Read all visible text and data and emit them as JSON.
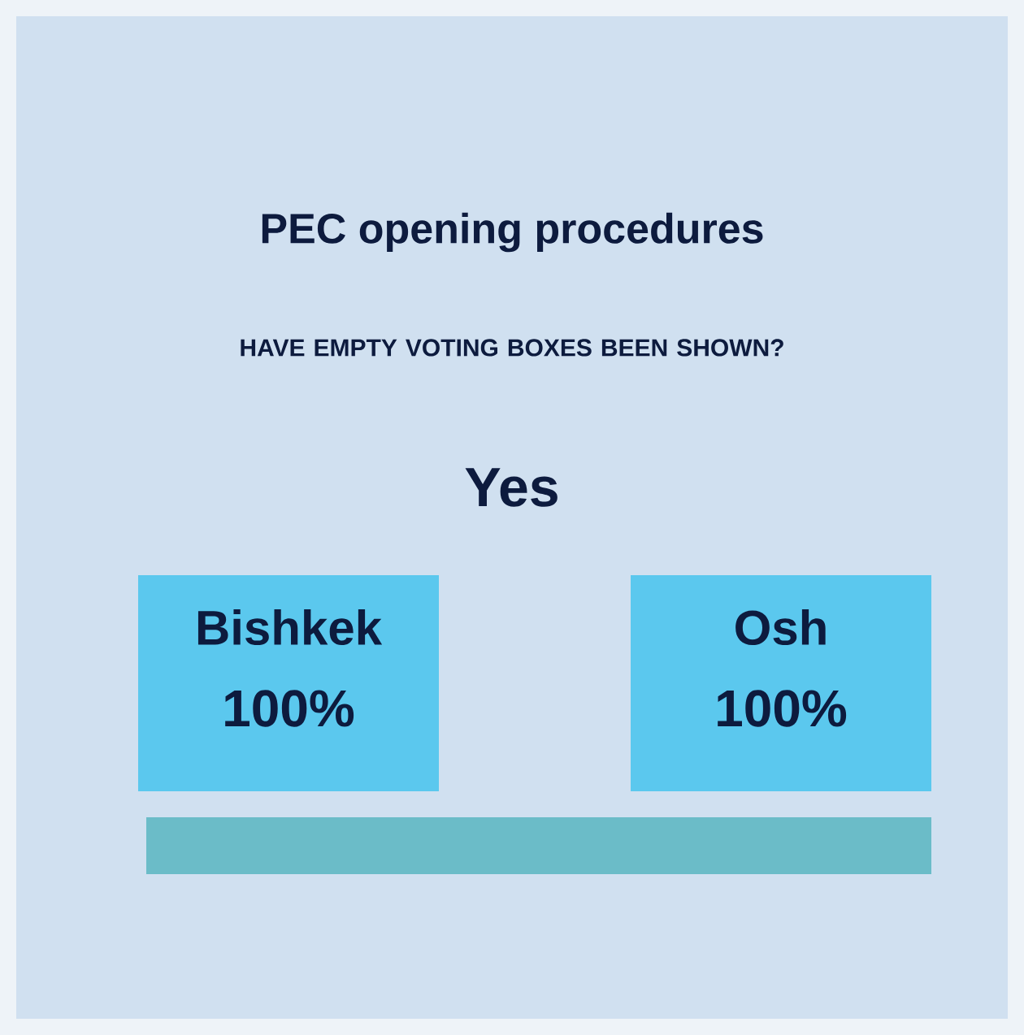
{
  "chart_data": {
    "type": "other",
    "title": "PEC opening procedures",
    "subtitle": "HAVE EMPTY VOTING BOXES BEEN SHOWN?",
    "annotations": [
      "Yes"
    ],
    "categories": [
      "Bishkek",
      "Osh"
    ],
    "values": [
      100,
      100
    ],
    "value_labels": [
      "100%",
      "100%"
    ],
    "colors": [
      "#5bc8ee",
      "#5bc8ee"
    ]
  }
}
